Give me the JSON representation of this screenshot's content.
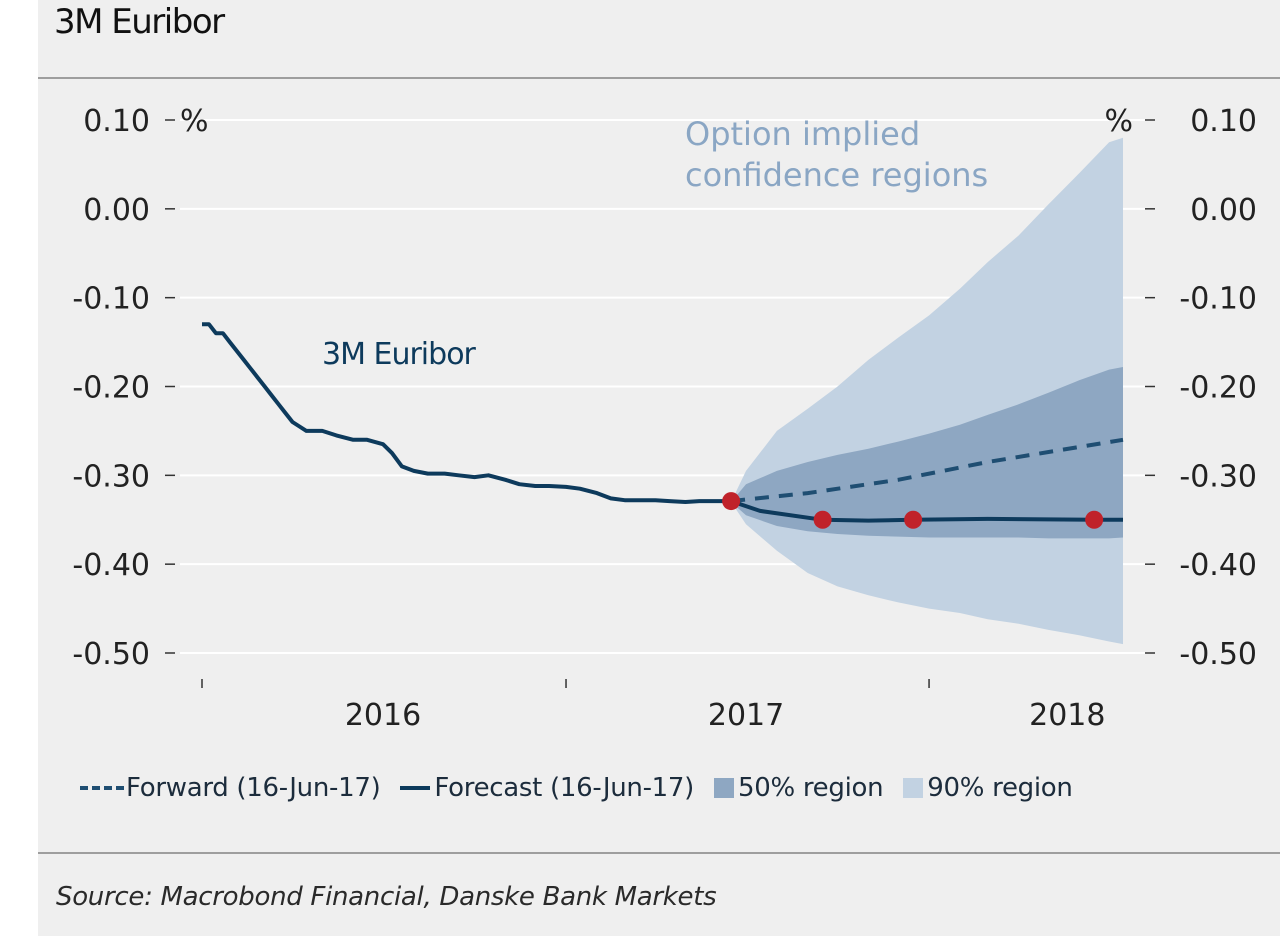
{
  "title": "3M Euribor",
  "source": "Source: Macrobond Financial, Danske Bank Markets",
  "colors": {
    "history": "#0d3a5c",
    "forward": "#1f4e72",
    "forecast": "#0d3a5c",
    "region50": "#8ea7c2",
    "region90": "#c2d2e2",
    "markers": "#c0222a",
    "annotation_blue": "#8aa6c4"
  },
  "chart_data": {
    "type": "line",
    "title": "3M Euribor",
    "y_unit_left": "%",
    "y_unit_right": "%",
    "ylim": [
      -0.5,
      0.1
    ],
    "yticks": [
      0.1,
      0.0,
      -0.1,
      -0.2,
      -0.3,
      -0.4,
      -0.5
    ],
    "ytick_labels": [
      "0.10",
      "0.00",
      "-0.10",
      "-0.20",
      "-0.30",
      "-0.40",
      "-0.50"
    ],
    "xlim": [
      "2016-01-01",
      "2018-07-15"
    ],
    "x_year_labels": [
      {
        "label": "2016",
        "x": "2016-07-01"
      },
      {
        "label": "2017",
        "x": "2017-07-01"
      },
      {
        "label": "2018",
        "x": "2018-05-20"
      }
    ],
    "x_ticks": [
      "2016-01-01",
      "2017-01-01",
      "2018-01-01"
    ],
    "grid": "horizontal",
    "legend_position": "bottom",
    "annotations": [
      {
        "text": "3M Euribor",
        "series": "3M Euribor"
      },
      {
        "text": "Option implied",
        "series": "regions"
      },
      {
        "text": "confidence regions",
        "series": "regions"
      }
    ],
    "legend": [
      {
        "label": "Forward (16-Jun-17)",
        "style": "dashed"
      },
      {
        "label": "Forecast (16-Jun-17)",
        "style": "solid"
      },
      {
        "label": "50% region",
        "style": "box50"
      },
      {
        "label": "90% region",
        "style": "box90"
      }
    ],
    "series": [
      {
        "name": "3M Euribor",
        "style": "history",
        "x": [
          "2016-01-01",
          "2016-01-08",
          "2016-01-15",
          "2016-01-22",
          "2016-01-29",
          "2016-02-05",
          "2016-02-12",
          "2016-02-19",
          "2016-02-26",
          "2016-03-04",
          "2016-03-11",
          "2016-03-18",
          "2016-03-25",
          "2016-04-01",
          "2016-04-08",
          "2016-04-15",
          "2016-04-22",
          "2016-05-01",
          "2016-05-15",
          "2016-06-01",
          "2016-06-15",
          "2016-07-01",
          "2016-07-10",
          "2016-07-20",
          "2016-08-01",
          "2016-08-15",
          "2016-09-01",
          "2016-09-15",
          "2016-10-01",
          "2016-10-15",
          "2016-11-01",
          "2016-11-15",
          "2016-12-01",
          "2016-12-15",
          "2017-01-01",
          "2017-01-15",
          "2017-02-01",
          "2017-02-15",
          "2017-03-01",
          "2017-03-15",
          "2017-04-01",
          "2017-04-15",
          "2017-05-01",
          "2017-05-15",
          "2017-06-01",
          "2017-06-16"
        ],
        "values": [
          -0.13,
          -0.13,
          -0.14,
          -0.14,
          -0.15,
          -0.16,
          -0.17,
          -0.18,
          -0.19,
          -0.2,
          -0.21,
          -0.22,
          -0.23,
          -0.24,
          -0.245,
          -0.25,
          -0.25,
          -0.25,
          -0.255,
          -0.26,
          -0.26,
          -0.265,
          -0.275,
          -0.29,
          -0.295,
          -0.298,
          -0.298,
          -0.3,
          -0.302,
          -0.3,
          -0.305,
          -0.31,
          -0.312,
          -0.312,
          -0.313,
          -0.315,
          -0.32,
          -0.326,
          -0.328,
          -0.328,
          -0.328,
          -0.329,
          -0.33,
          -0.329,
          -0.329,
          -0.329
        ]
      },
      {
        "name": "Forward (16-Jun-17)",
        "style": "dashed",
        "x": [
          "2017-06-16",
          "2017-09-01",
          "2017-12-01",
          "2018-03-01",
          "2018-07-15"
        ],
        "values": [
          -0.329,
          -0.32,
          -0.305,
          -0.285,
          -0.26
        ]
      },
      {
        "name": "Forecast (16-Jun-17)",
        "style": "solid",
        "x": [
          "2017-06-16",
          "2017-07-15",
          "2017-09-16",
          "2017-11-01",
          "2017-12-16",
          "2018-03-01",
          "2018-06-16",
          "2018-07-15"
        ],
        "values": [
          -0.329,
          -0.34,
          -0.35,
          -0.351,
          -0.35,
          -0.349,
          -0.35,
          -0.35
        ],
        "markers": [
          {
            "x": "2017-06-16",
            "y": -0.329
          },
          {
            "x": "2017-09-16",
            "y": -0.35
          },
          {
            "x": "2017-12-16",
            "y": -0.35
          },
          {
            "x": "2018-06-16",
            "y": -0.35
          }
        ]
      },
      {
        "name": "90% region",
        "style": "band90",
        "x": [
          "2017-06-16",
          "2017-07-01",
          "2017-08-01",
          "2017-09-01",
          "2017-10-01",
          "2017-11-01",
          "2017-12-01",
          "2018-01-01",
          "2018-02-01",
          "2018-03-01",
          "2018-04-01",
          "2018-05-01",
          "2018-06-01",
          "2018-07-01",
          "2018-07-15"
        ],
        "upper": [
          -0.33,
          -0.295,
          -0.25,
          -0.225,
          -0.2,
          -0.17,
          -0.145,
          -0.12,
          -0.09,
          -0.06,
          -0.03,
          0.005,
          0.04,
          0.075,
          0.08
        ],
        "lower": [
          -0.33,
          -0.355,
          -0.385,
          -0.41,
          -0.425,
          -0.435,
          -0.443,
          -0.45,
          -0.455,
          -0.462,
          -0.467,
          -0.474,
          -0.48,
          -0.487,
          -0.49
        ]
      },
      {
        "name": "50% region",
        "style": "band50",
        "x": [
          "2017-06-16",
          "2017-07-01",
          "2017-08-01",
          "2017-09-01",
          "2017-10-01",
          "2017-11-01",
          "2017-12-01",
          "2018-01-01",
          "2018-02-01",
          "2018-03-01",
          "2018-04-01",
          "2018-05-01",
          "2018-06-01",
          "2018-07-01",
          "2018-07-15"
        ],
        "upper": [
          -0.33,
          -0.31,
          -0.295,
          -0.285,
          -0.277,
          -0.27,
          -0.262,
          -0.253,
          -0.243,
          -0.232,
          -0.22,
          -0.207,
          -0.193,
          -0.181,
          -0.178
        ],
        "lower": [
          -0.33,
          -0.345,
          -0.357,
          -0.363,
          -0.366,
          -0.368,
          -0.369,
          -0.37,
          -0.37,
          -0.37,
          -0.37,
          -0.371,
          -0.371,
          -0.371,
          -0.37
        ]
      }
    ]
  }
}
